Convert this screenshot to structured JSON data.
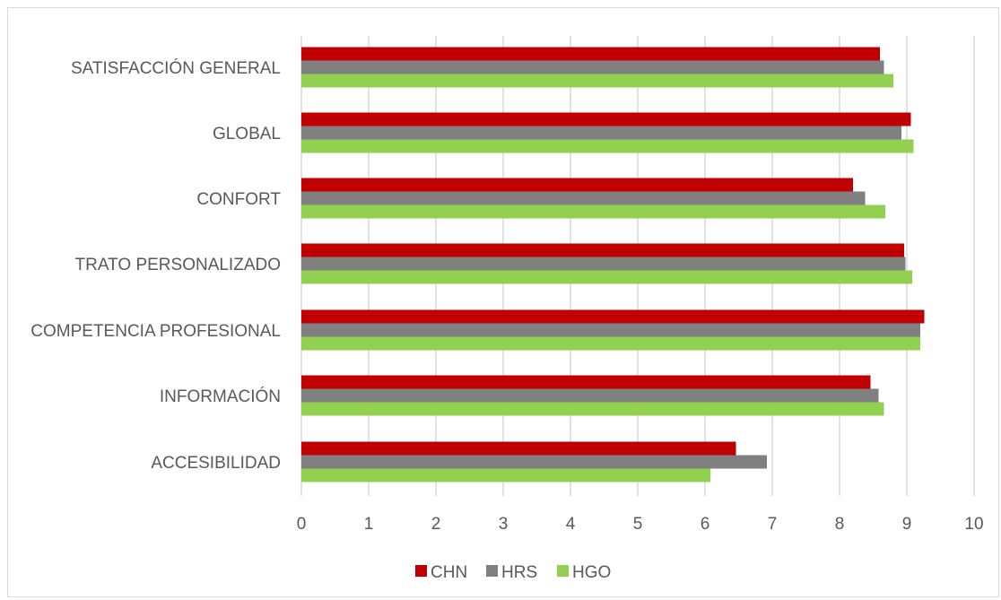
{
  "chart_data": {
    "type": "bar",
    "orientation": "horizontal",
    "categories": [
      "SATISFACCIÓN GENERAL",
      "GLOBAL",
      "CONFORT",
      "TRATO PERSONALIZADO",
      "COMPETENCIA PROFESIONAL",
      "INFORMACIÓN",
      "ACCESIBILIDAD"
    ],
    "series": [
      {
        "name": "CHN",
        "color": "#c00000",
        "values": [
          8.6,
          9.06,
          8.2,
          8.96,
          9.26,
          8.46,
          6.46
        ]
      },
      {
        "name": "HRS",
        "color": "#808080",
        "values": [
          8.66,
          8.92,
          8.38,
          8.98,
          9.2,
          8.58,
          6.92
        ]
      },
      {
        "name": "HGO",
        "color": "#92d050",
        "values": [
          8.8,
          9.1,
          8.68,
          9.08,
          9.2,
          8.66,
          6.08
        ]
      }
    ],
    "xlim": [
      0,
      10
    ],
    "xticks": [
      "0",
      "1",
      "2",
      "3",
      "4",
      "5",
      "6",
      "7",
      "8",
      "9",
      "10"
    ],
    "grid": true,
    "legend_position": "bottom",
    "gridline_color": "#d9d9d9",
    "text_color": "#595959"
  }
}
